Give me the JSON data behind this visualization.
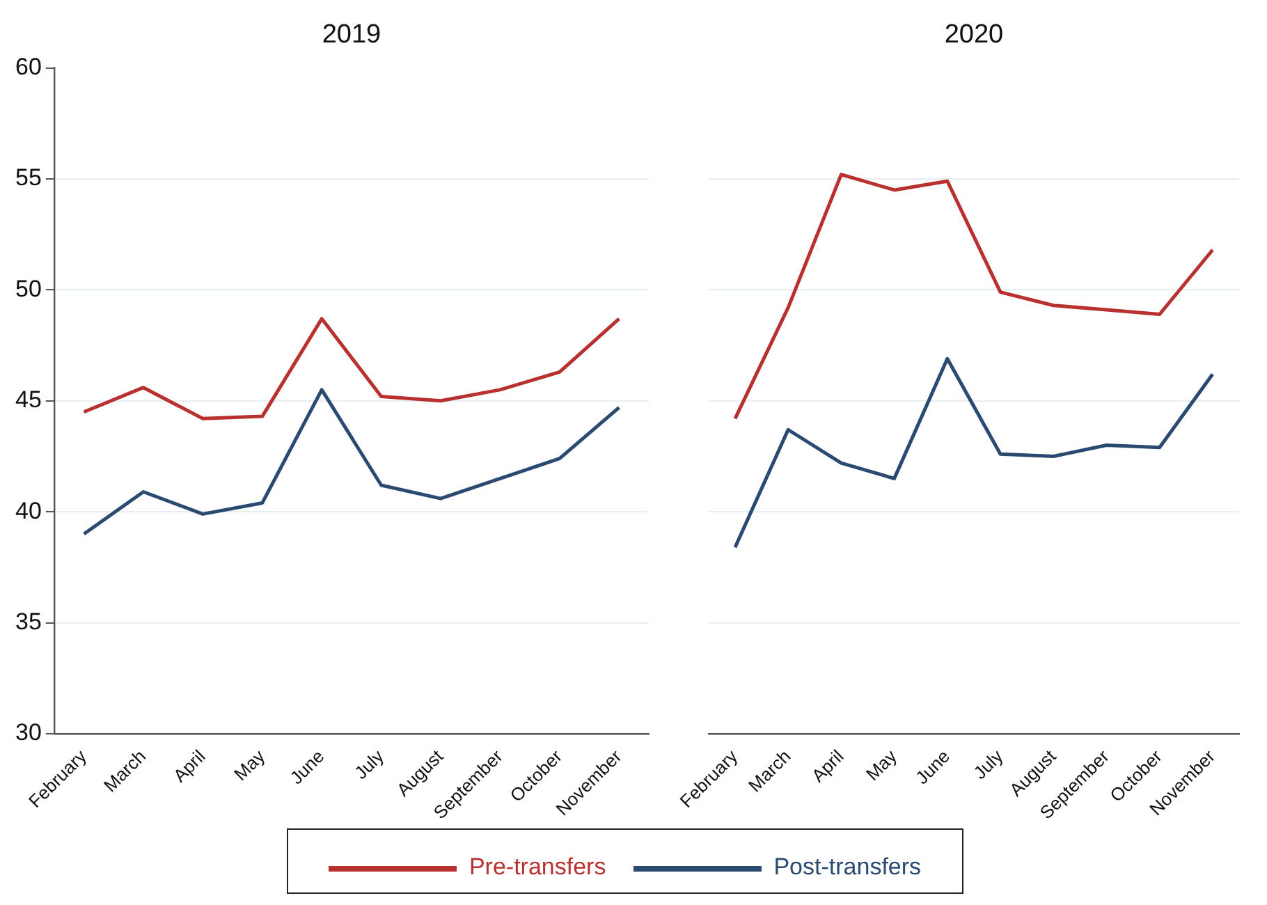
{
  "chart_data": [
    {
      "type": "line",
      "title": "2019",
      "categories": [
        "February",
        "March",
        "April",
        "May",
        "June",
        "July",
        "August",
        "September",
        "October",
        "November"
      ],
      "series": [
        {
          "name": "Pre-transfers",
          "color": "#b8312f",
          "values": [
            44.5,
            45.6,
            44.2,
            44.3,
            48.7,
            45.2,
            45.0,
            45.5,
            46.3,
            48.7
          ]
        },
        {
          "name": "Post-transfers",
          "color": "#2b4a72",
          "values": [
            39.0,
            40.9,
            39.9,
            40.4,
            45.5,
            41.2,
            40.6,
            41.5,
            42.4,
            44.7
          ]
        }
      ],
      "ylim": [
        30,
        60
      ],
      "yticks": [
        30,
        35,
        40,
        45,
        50,
        55,
        60
      ],
      "grid": "y",
      "legend": "bottom"
    },
    {
      "type": "line",
      "title": "2020",
      "categories": [
        "February",
        "March",
        "April",
        "May",
        "June",
        "July",
        "August",
        "September",
        "October",
        "November"
      ],
      "series": [
        {
          "color": "#b8312f",
          "values": [
            44.2,
            49.2,
            55.2,
            54.5,
            54.9,
            49.9,
            49.3,
            49.1,
            48.9,
            51.8
          ]
        },
        {
          "color": "#2b4a72",
          "values": [
            38.4,
            43.7,
            42.2,
            41.5,
            46.9,
            42.6,
            42.5,
            43.0,
            42.9,
            46.2
          ]
        }
      ],
      "ylim": [
        30,
        60
      ],
      "yticks": [
        30,
        35,
        40,
        45,
        50,
        55,
        60
      ],
      "grid": "y",
      "tick_labels": "x"
    }
  ]
}
